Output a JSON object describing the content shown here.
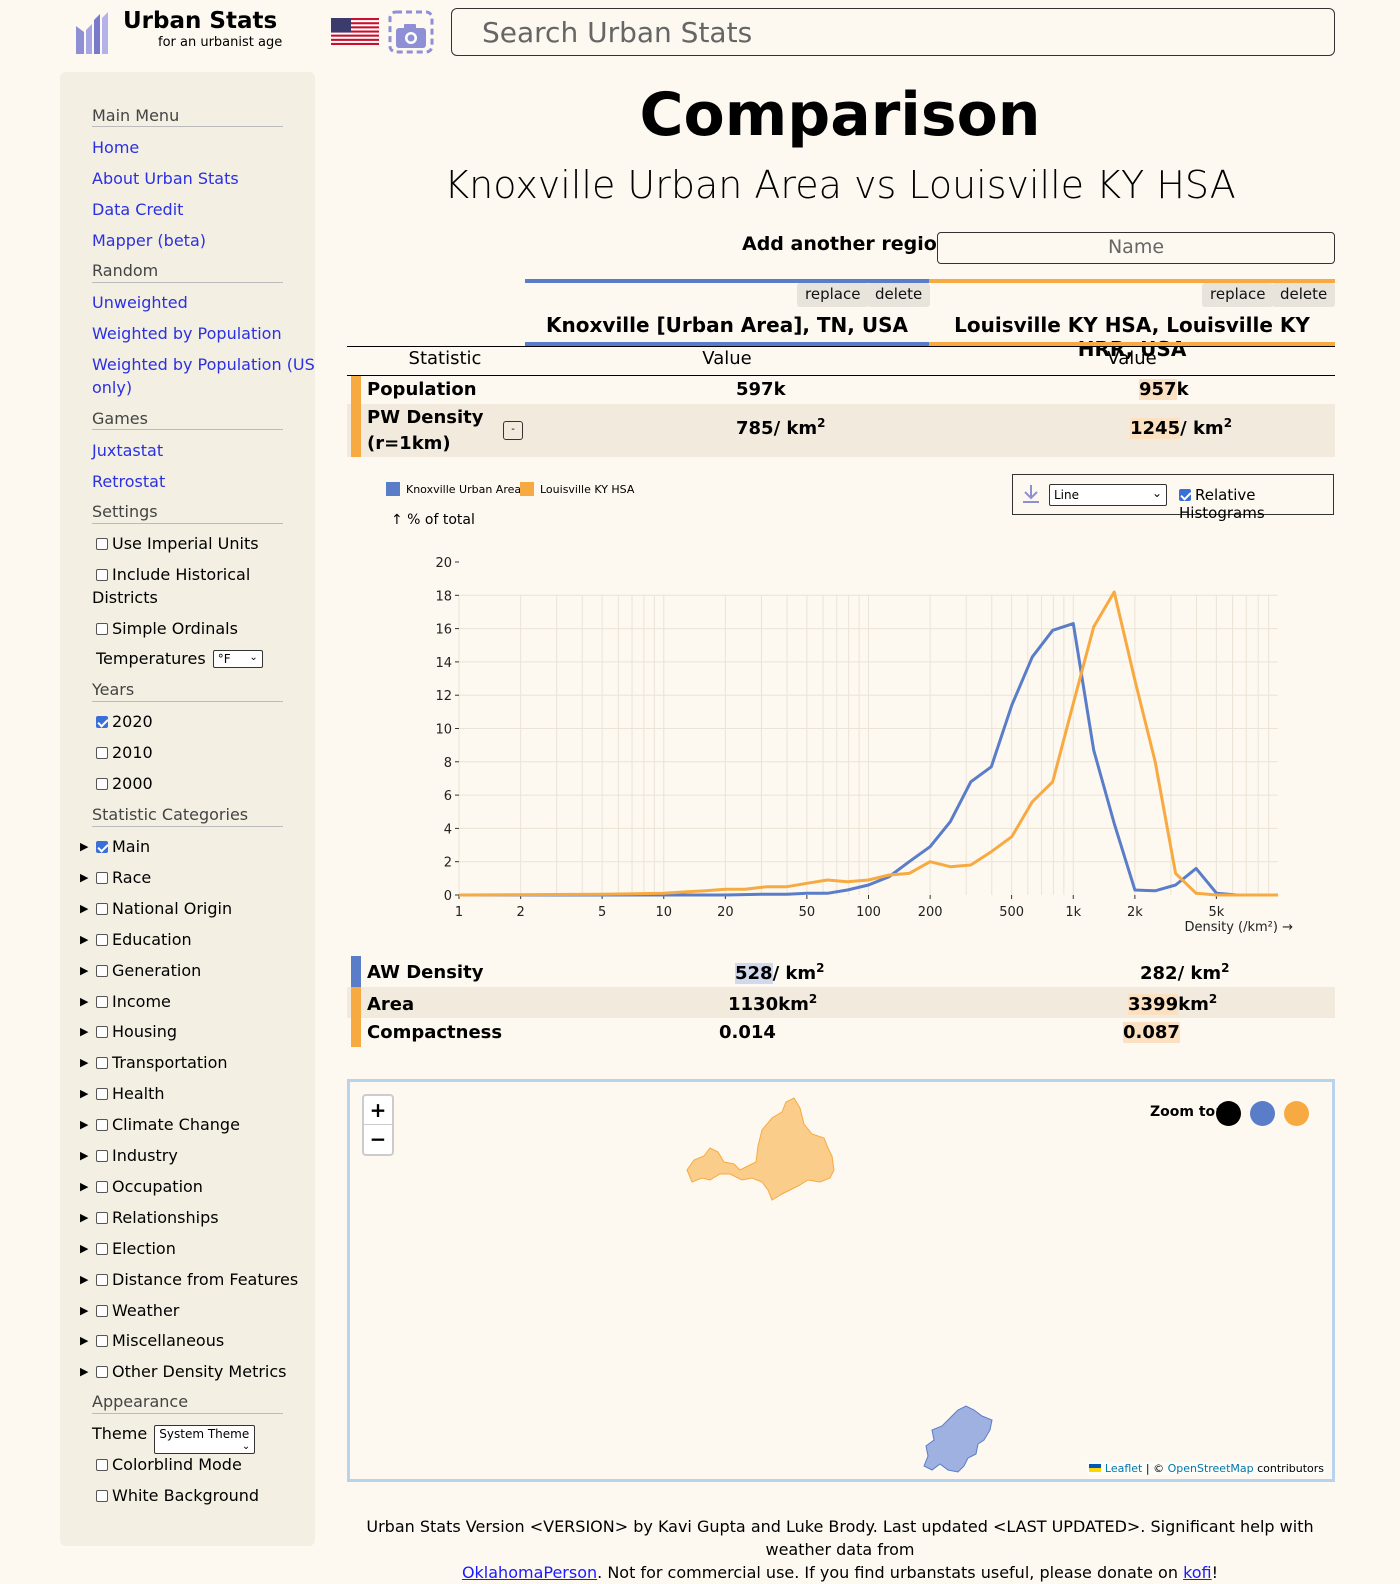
{
  "header": {
    "logo_title": "Urban Stats",
    "logo_subtitle": "for an urbanist age",
    "search_placeholder": "Search Urban Stats"
  },
  "sidebar": {
    "main_menu_heading": "Main Menu",
    "links": [
      "Home",
      "About Urban Stats",
      "Data Credit",
      "Mapper (beta)"
    ],
    "random_heading": "Random",
    "random_links": [
      "Unweighted",
      "Weighted by Population",
      "Weighted by Population (US",
      "only)"
    ],
    "games_heading": "Games",
    "games_links": [
      "Juxtastat",
      "Retrostat"
    ],
    "settings_heading": "Settings",
    "settings": [
      "Use Imperial Units",
      "Include Historical",
      "Districts",
      "Simple Ordinals"
    ],
    "temperatures_label": "Temperatures",
    "temperatures_value": "°F",
    "years_heading": "Years",
    "years": [
      {
        "label": "2020",
        "checked": true
      },
      {
        "label": "2010",
        "checked": false
      },
      {
        "label": "2000",
        "checked": false
      }
    ],
    "categories_heading": "Statistic Categories",
    "categories": [
      {
        "label": "Main",
        "checked": true
      },
      {
        "label": "Race",
        "checked": false
      },
      {
        "label": "National Origin",
        "checked": false
      },
      {
        "label": "Education",
        "checked": false
      },
      {
        "label": "Generation",
        "checked": false
      },
      {
        "label": "Income",
        "checked": false
      },
      {
        "label": "Housing",
        "checked": false
      },
      {
        "label": "Transportation",
        "checked": false
      },
      {
        "label": "Health",
        "checked": false
      },
      {
        "label": "Climate Change",
        "checked": false
      },
      {
        "label": "Industry",
        "checked": false
      },
      {
        "label": "Occupation",
        "checked": false
      },
      {
        "label": "Relationships",
        "checked": false
      },
      {
        "label": "Election",
        "checked": false
      },
      {
        "label": "Distance from Features",
        "checked": false
      },
      {
        "label": "Weather",
        "checked": false
      },
      {
        "label": "Miscellaneous",
        "checked": false
      },
      {
        "label": "Other Density Metrics",
        "checked": false
      }
    ],
    "appearance_heading": "Appearance",
    "theme_label": "Theme",
    "theme_value": "System Theme",
    "appearance_options": [
      "Colorblind Mode",
      "White Background"
    ]
  },
  "main": {
    "title": "Comparison",
    "subtitle": "Knoxville Urban Area vs Louisville KY HSA",
    "add_label": "Add another region:",
    "add_placeholder": "Name",
    "replace_label": "replace",
    "delete_label": "delete",
    "region1": "Knoxville [Urban Area], TN, USA",
    "region2": "Louisville KY HSA, Louisville KY HRR, USA",
    "col_statistic": "Statistic",
    "col_value": "Value",
    "colors": {
      "region1": "#5a7dc9",
      "region2": "#f7aa41"
    },
    "stats_top": [
      {
        "name": "Population",
        "v1": "597",
        "u1": "k",
        "v2": "957",
        "u2": "k"
      },
      {
        "name_line1": "PW Density",
        "name_line2": "(r=1km)",
        "v1": "785",
        "u1": "/ km",
        "v2": "1245",
        "u2": "/ km",
        "sup": "2",
        "toggle": "-"
      }
    ],
    "stats_bottom": [
      {
        "name": "AW Density",
        "v1": "528",
        "u1": "/ km",
        "v2": "282",
        "u2": "/ km",
        "sup": "2"
      },
      {
        "name": "Area",
        "v1": "1130",
        "u1": "km",
        "v2": "3399",
        "u2": "km",
        "sup": "2"
      },
      {
        "name": "Compactness",
        "v1": "0.014",
        "v2": "0.087"
      }
    ]
  },
  "chart_controls": {
    "type_value": "Line",
    "relative_label": "Relative Histograms",
    "relative_checked": true
  },
  "chart_data": {
    "type": "line",
    "ylabel": "↑ % of total",
    "xlabel": "Density (/km²) →",
    "x_scale": "log",
    "xlim": [
      1,
      10000
    ],
    "ylim": [
      0,
      20
    ],
    "x_ticks": [
      1,
      2,
      5,
      10,
      20,
      50,
      100,
      200,
      500,
      1000,
      2000,
      5000
    ],
    "x_tick_labels": [
      "1",
      "2",
      "5",
      "10",
      "20",
      "50",
      "100",
      "200",
      "500",
      "1k",
      "2k",
      "5k"
    ],
    "y_ticks": [
      0,
      2,
      4,
      6,
      8,
      10,
      12,
      14,
      16,
      18,
      20
    ],
    "grid": true,
    "legend_position": "top-left",
    "series": [
      {
        "name": "Knoxville Urban Area",
        "color": "#5a7dc9",
        "x": [
          1,
          5,
          10,
          20,
          30,
          40,
          50,
          63,
          79,
          100,
          126,
          158,
          200,
          251,
          316,
          398,
          501,
          631,
          794,
          1000,
          1259,
          1585,
          2000,
          2512,
          3162,
          3981,
          5012,
          6310,
          7943,
          10000
        ],
        "y": [
          0,
          0,
          0,
          0,
          0.05,
          0.05,
          0.1,
          0.1,
          0.3,
          0.6,
          1.1,
          2.0,
          2.9,
          4.4,
          6.8,
          7.7,
          11.4,
          14.3,
          15.9,
          16.3,
          8.7,
          4.3,
          0.3,
          0.25,
          0.6,
          1.6,
          0.1,
          0,
          0,
          0
        ]
      },
      {
        "name": "Louisville KY HSA",
        "color": "#f7aa41",
        "x": [
          1,
          5,
          10,
          13,
          16,
          20,
          25,
          32,
          40,
          50,
          63,
          79,
          100,
          126,
          158,
          200,
          251,
          316,
          398,
          501,
          631,
          794,
          1000,
          1259,
          1585,
          2000,
          2512,
          3162,
          3981,
          5012,
          6310,
          7943,
          10000
        ],
        "y": [
          0,
          0.05,
          0.1,
          0.2,
          0.25,
          0.35,
          0.35,
          0.5,
          0.5,
          0.7,
          0.9,
          0.8,
          0.9,
          1.2,
          1.3,
          2.0,
          1.7,
          1.8,
          2.6,
          3.5,
          5.6,
          6.8,
          11.5,
          16.1,
          18.2,
          12.9,
          8.0,
          1.3,
          0.1,
          0,
          0,
          0,
          0
        ]
      }
    ]
  },
  "map": {
    "zoom_in": "+",
    "zoom_out": "−",
    "zoom_to_label": "Zoom to:",
    "attrib_leaflet": "Leaflet",
    "attrib_sep": " | © ",
    "attrib_osm": "OpenStreetMap",
    "attrib_tail": " contributors"
  },
  "footer": {
    "line1": "Urban Stats Version <VERSION> by Kavi Gupta and Luke Brody. Last updated <LAST UPDATED>. Significant help with weather data from",
    "link1": "OklahomaPerson",
    "mid": ". Not for commercial use. If you find urbanstats useful, please donate on ",
    "link2": "kofi",
    "end": "!"
  }
}
